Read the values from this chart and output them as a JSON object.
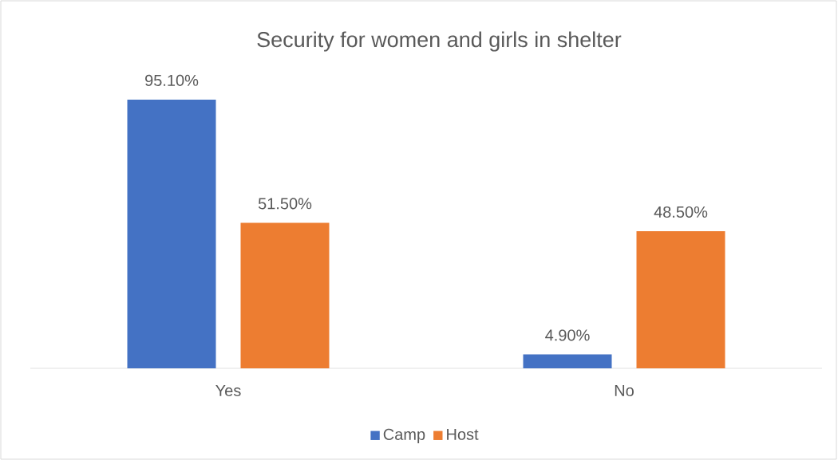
{
  "chart_data": {
    "type": "bar",
    "title": "Security for women and girls in shelter",
    "categories": [
      "Yes",
      "No"
    ],
    "series": [
      {
        "name": "Camp",
        "color": "#4472c4",
        "values": [
          95.1,
          4.9
        ],
        "value_labels": [
          "95.10%",
          "4.90%"
        ]
      },
      {
        "name": "Host",
        "color": "#ed7d31",
        "values": [
          51.5,
          48.5
        ],
        "value_labels": [
          "51.50%",
          "48.50%"
        ]
      }
    ],
    "grid": false,
    "legend": "bottom",
    "tick_labels": "x"
  }
}
